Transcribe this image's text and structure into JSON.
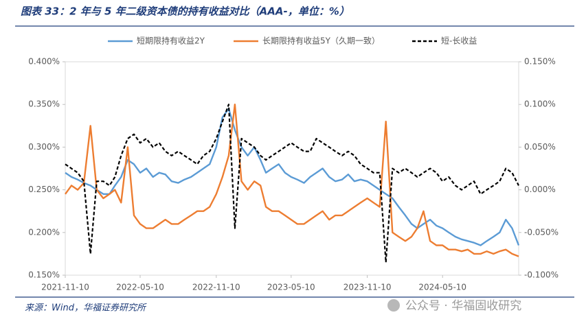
{
  "chart_data": {
    "type": "line",
    "title": "图表 33：2 年与 5 年二级资本债的持有收益对比（AAA-，单位：%）",
    "source": "来源：Wind，华福证券研究所",
    "watermark": "公众号 · 华福固收研究",
    "x": [
      "2021-11-10",
      "2021-11-25",
      "2021-12-10",
      "2021-12-25",
      "2022-01-10",
      "2022-01-25",
      "2022-02-10",
      "2022-02-25",
      "2022-03-10",
      "2022-03-25",
      "2022-04-10",
      "2022-04-25",
      "2022-05-10",
      "2022-05-25",
      "2022-06-10",
      "2022-06-25",
      "2022-07-10",
      "2022-07-25",
      "2022-08-10",
      "2022-08-25",
      "2022-09-10",
      "2022-09-25",
      "2022-10-10",
      "2022-10-25",
      "2022-11-10",
      "2022-11-25",
      "2022-12-10",
      "2022-12-25",
      "2023-01-10",
      "2023-01-25",
      "2023-02-10",
      "2023-02-25",
      "2023-03-10",
      "2023-03-25",
      "2023-04-10",
      "2023-04-25",
      "2023-05-10",
      "2023-05-25",
      "2023-06-10",
      "2023-06-25",
      "2023-07-10",
      "2023-07-25",
      "2023-08-10",
      "2023-08-25",
      "2023-09-10",
      "2023-09-25",
      "2023-10-10",
      "2023-10-25",
      "2023-11-10",
      "2023-11-25",
      "2023-12-10",
      "2023-12-25",
      "2024-01-10",
      "2024-01-25",
      "2024-02-10",
      "2024-02-25",
      "2024-03-10",
      "2024-03-25",
      "2024-04-10",
      "2024-04-25",
      "2024-05-10",
      "2024-05-25",
      "2024-06-10",
      "2024-06-25",
      "2024-07-10",
      "2024-07-25",
      "2024-08-10",
      "2024-08-25",
      "2024-09-10",
      "2024-09-25",
      "2024-10-10",
      "2024-10-25",
      "2024-11-10"
    ],
    "series": [
      {
        "name": "短期限持有收益2Y",
        "color": "#5b9bd5",
        "dash": false,
        "axis": "y",
        "values": [
          0.27,
          0.265,
          0.262,
          0.258,
          0.255,
          0.25,
          0.245,
          0.245,
          0.255,
          0.265,
          0.285,
          0.28,
          0.27,
          0.275,
          0.265,
          0.27,
          0.268,
          0.26,
          0.258,
          0.262,
          0.265,
          0.27,
          0.275,
          0.28,
          0.3,
          0.335,
          0.345,
          0.32,
          0.3,
          0.29,
          0.3,
          0.285,
          0.27,
          0.275,
          0.28,
          0.27,
          0.265,
          0.262,
          0.258,
          0.265,
          0.27,
          0.275,
          0.265,
          0.26,
          0.262,
          0.268,
          0.26,
          0.262,
          0.26,
          0.255,
          0.25,
          0.245,
          0.24,
          0.23,
          0.22,
          0.21,
          0.205,
          0.21,
          0.215,
          0.208,
          0.205,
          0.2,
          0.195,
          0.192,
          0.19,
          0.188,
          0.185,
          0.19,
          0.195,
          0.2,
          0.215,
          0.205,
          0.185
        ]
      },
      {
        "name": "长期限持有收益5Y（久期一致）",
        "color": "#ed7d31",
        "dash": false,
        "axis": "y",
        "values": [
          0.245,
          0.255,
          0.25,
          0.258,
          0.325,
          0.25,
          0.24,
          0.245,
          0.25,
          0.235,
          0.3,
          0.22,
          0.21,
          0.205,
          0.205,
          0.21,
          0.215,
          0.21,
          0.21,
          0.215,
          0.22,
          0.225,
          0.225,
          0.23,
          0.245,
          0.265,
          0.29,
          0.35,
          0.26,
          0.25,
          0.26,
          0.255,
          0.23,
          0.225,
          0.225,
          0.22,
          0.215,
          0.21,
          0.21,
          0.215,
          0.22,
          0.225,
          0.215,
          0.22,
          0.22,
          0.225,
          0.23,
          0.235,
          0.24,
          0.235,
          0.23,
          0.33,
          0.2,
          0.195,
          0.19,
          0.195,
          0.205,
          0.225,
          0.19,
          0.185,
          0.185,
          0.18,
          0.18,
          0.178,
          0.18,
          0.175,
          0.175,
          0.178,
          0.175,
          0.178,
          0.18,
          0.175,
          0.172
        ]
      },
      {
        "name": "短-长收益",
        "color": "#000000",
        "dash": true,
        "axis": "y2",
        "values": [
          0.03,
          0.025,
          0.02,
          0.01,
          -0.075,
          0.01,
          0.01,
          0.005,
          0.015,
          0.04,
          0.06,
          0.065,
          0.055,
          0.06,
          0.05,
          0.055,
          0.045,
          0.04,
          0.045,
          0.04,
          0.035,
          0.03,
          0.04,
          0.045,
          0.06,
          0.08,
          0.1,
          -0.045,
          0.06,
          0.055,
          0.05,
          0.04,
          0.035,
          0.04,
          0.045,
          0.05,
          0.055,
          0.05,
          0.045,
          0.045,
          0.06,
          0.055,
          0.05,
          0.045,
          0.04,
          0.045,
          0.04,
          0.03,
          0.025,
          0.02,
          0.02,
          -0.085,
          0.025,
          0.02,
          0.025,
          0.02,
          0.015,
          0.02,
          0.025,
          0.02,
          0.01,
          0.015,
          0.005,
          0.0,
          0.005,
          0.01,
          -0.005,
          0.0,
          0.005,
          0.01,
          0.025,
          0.02,
          0.005
        ]
      }
    ],
    "xlim": [
      "2021-11-10",
      "2024-11-10"
    ],
    "xticks": [
      "2021-11-10",
      "2022-05-10",
      "2022-11-10",
      "2023-05-10",
      "2023-11-10",
      "2024-05-10"
    ],
    "ylim": [
      0.15,
      0.4
    ],
    "yticks": [
      {
        "value": 0.15,
        "label": "0.150%"
      },
      {
        "value": 0.2,
        "label": "0.200%"
      },
      {
        "value": 0.25,
        "label": "0.250%"
      },
      {
        "value": 0.3,
        "label": "0.300%"
      },
      {
        "value": 0.35,
        "label": "0.350%"
      },
      {
        "value": 0.4,
        "label": "0.400%"
      }
    ],
    "y2lim": [
      -0.1,
      0.15
    ],
    "y2ticks": [
      {
        "value": -0.1,
        "label": "-0.100%"
      },
      {
        "value": -0.05,
        "label": "-0.050%"
      },
      {
        "value": 0,
        "label": "0.000%"
      },
      {
        "value": 0.05,
        "label": "0.050%"
      },
      {
        "value": 0.1,
        "label": "0.100%"
      },
      {
        "value": 0.15,
        "label": "0.150%"
      }
    ],
    "legend": "top"
  }
}
